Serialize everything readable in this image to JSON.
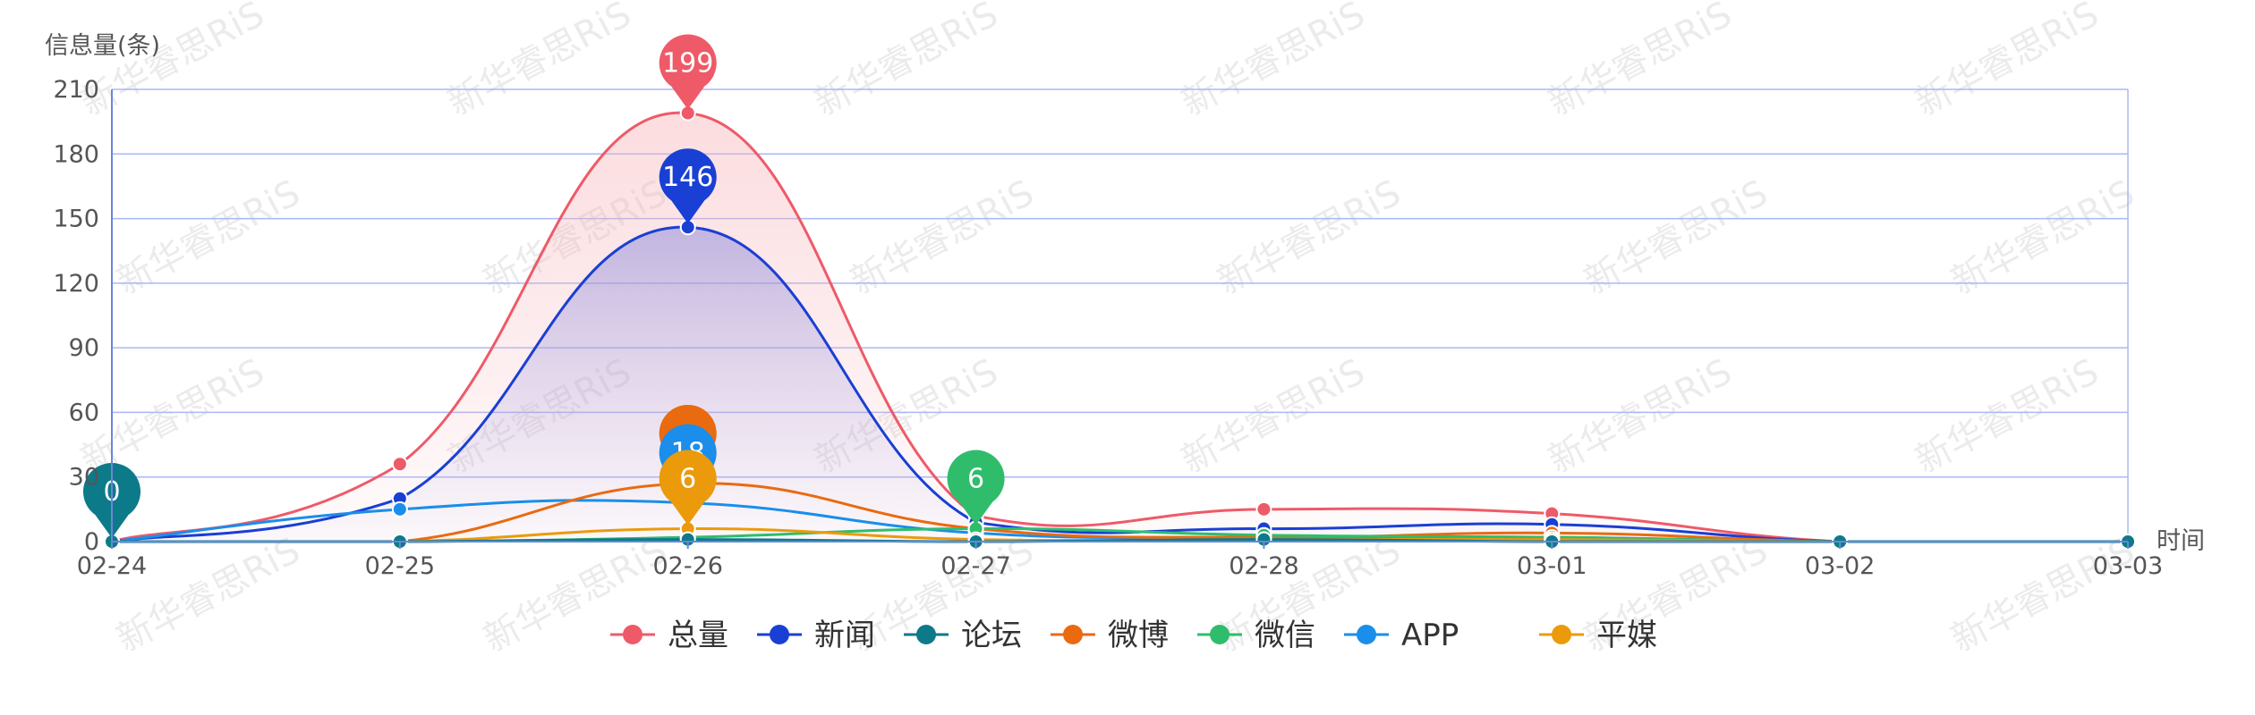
{
  "watermark": {
    "text": "新华睿思RiS"
  },
  "chart_data": {
    "type": "line",
    "smooth": true,
    "ylabel": "信息量(条)",
    "xlabel": "时间",
    "ylim": [
      0,
      210
    ],
    "yticks": [
      0,
      30,
      60,
      90,
      120,
      150,
      180,
      210
    ],
    "categories": [
      "02-24",
      "02-25",
      "02-26",
      "02-27",
      "02-28",
      "03-01",
      "03-02",
      "03-03"
    ],
    "grid": true,
    "legend_position": "bottom-center",
    "series": [
      {
        "name": "总量",
        "color": "#ee5a68",
        "values": [
          0,
          36,
          199,
          12,
          15,
          13,
          0,
          0
        ],
        "area": true,
        "pin": {
          "index": 2,
          "label": "199"
        }
      },
      {
        "name": "新闻",
        "color": "#1a3fd4",
        "values": [
          0,
          20,
          146,
          9,
          6,
          8,
          0,
          0
        ],
        "area": true,
        "pin": {
          "index": 2,
          "label": "146"
        }
      },
      {
        "name": "论坛",
        "color": "#0d7a8a",
        "values": [
          0,
          0,
          1,
          0,
          1,
          0,
          0,
          0
        ],
        "pin": {
          "index": 0,
          "label": "0"
        }
      },
      {
        "name": "微博",
        "color": "#ea6a10",
        "values": [
          0,
          0,
          27,
          6,
          2,
          4,
          0,
          0
        ],
        "pin": {
          "index": 2,
          "label": ""
        }
      },
      {
        "name": "微信",
        "color": "#2fbd6c",
        "values": [
          0,
          0,
          2,
          6,
          3,
          2,
          0,
          0
        ],
        "pin": {
          "index": 3,
          "label": "6"
        }
      },
      {
        "name": "APP",
        "color": "#1a8eea",
        "values": [
          0,
          15,
          18,
          4,
          2,
          2,
          0,
          0
        ],
        "pin": {
          "index": 2,
          "label": "18"
        }
      },
      {
        "name": "平媒",
        "color": "#eb9a0c",
        "values": [
          0,
          0,
          6,
          1,
          1,
          1,
          0,
          0
        ],
        "pin": {
          "index": 2,
          "label": "6"
        }
      }
    ]
  }
}
